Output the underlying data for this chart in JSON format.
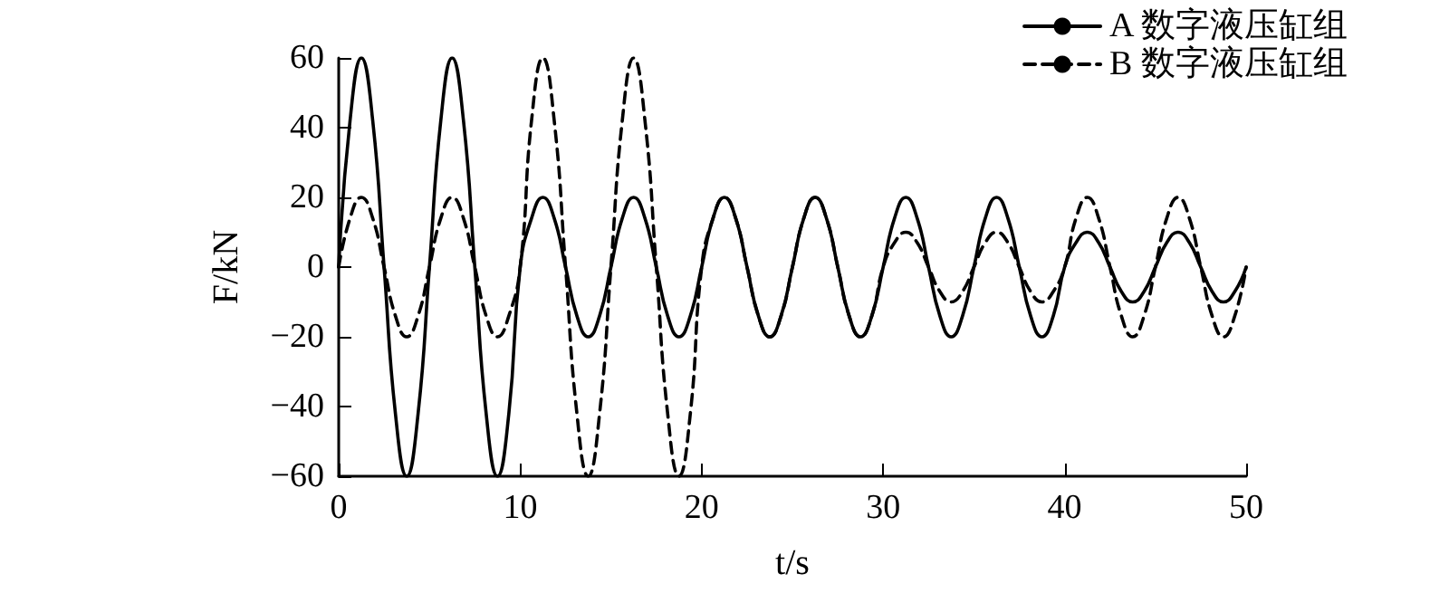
{
  "chart_data": {
    "type": "line",
    "xlabel": "t/s",
    "ylabel": "F/kN",
    "x": [
      0,
      0.625,
      1.25,
      1.875,
      2.5,
      3.125,
      3.75,
      4.375,
      5,
      5.625,
      6.25,
      6.875,
      7.5,
      8.125,
      8.75,
      9.375,
      10,
      10.625,
      11.25,
      11.875,
      12.5,
      13.125,
      13.75,
      14.375,
      15,
      15.625,
      16.25,
      16.875,
      17.5,
      18.125,
      18.75,
      19.375,
      20,
      20.625,
      21.25,
      21.875,
      22.5,
      23.125,
      23.75,
      24.375,
      25,
      25.625,
      26.25,
      26.875,
      27.5,
      28.125,
      28.75,
      29.375,
      30,
      30.625,
      31.25,
      31.875,
      32.5,
      33.125,
      33.75,
      34.375,
      35,
      35.625,
      36.25,
      36.875,
      37.5,
      38.125,
      38.75,
      39.375,
      40,
      40.625,
      41.25,
      41.875,
      42.5,
      43.125,
      43.75,
      44.375,
      45,
      45.625,
      46.25,
      46.875,
      47.5,
      48.125,
      48.75,
      49.375,
      50
    ],
    "series": [
      {
        "name": "A 数字液压缸组",
        "color": "#000000",
        "line_style": "solid",
        "values": [
          0,
          42,
          60,
          42,
          0,
          -42,
          -60,
          -42,
          0,
          42,
          60,
          42,
          0,
          -42,
          -60,
          -42,
          0,
          14,
          20,
          14,
          0,
          -14,
          -20,
          -14,
          0,
          14,
          20,
          14,
          0,
          -14,
          -20,
          -14,
          0,
          14,
          20,
          14,
          0,
          -14,
          -20,
          -14,
          0,
          14,
          20,
          14,
          0,
          -14,
          -20,
          -14,
          0,
          14,
          20,
          14,
          0,
          -14,
          -20,
          -14,
          0,
          14,
          20,
          14,
          0,
          -14,
          -20,
          -14,
          0,
          7,
          10,
          7,
          0,
          -7,
          -10,
          -7,
          0,
          7,
          10,
          7,
          0,
          -7,
          -10,
          -7,
          0
        ]
      },
      {
        "name": "B 数字液压缸组",
        "color": "#000000",
        "line_style": "dashed",
        "values": [
          0,
          14,
          20,
          14,
          0,
          -14,
          -20,
          -14,
          0,
          14,
          20,
          14,
          0,
          -14,
          -20,
          -14,
          0,
          42,
          60,
          42,
          0,
          -42,
          -60,
          -42,
          0,
          42,
          60,
          42,
          0,
          -42,
          -60,
          -42,
          0,
          14,
          20,
          14,
          0,
          -14,
          -20,
          -14,
          0,
          14,
          20,
          14,
          0,
          -14,
          -20,
          -14,
          0,
          7,
          10,
          7,
          0,
          -7,
          -10,
          -7,
          0,
          7,
          10,
          7,
          0,
          -7,
          -10,
          -7,
          0,
          14,
          20,
          14,
          0,
          -14,
          -20,
          -14,
          0,
          14,
          20,
          14,
          0,
          -14,
          -20,
          -14,
          0
        ]
      }
    ],
    "xlim": [
      0,
      50
    ],
    "xticks": [
      0,
      10,
      20,
      30,
      40,
      50
    ],
    "ylim": [
      -60,
      60
    ],
    "yticks": [
      -60,
      -40,
      -20,
      0,
      20,
      40,
      60
    ],
    "grid": false,
    "legend": "top right",
    "marker": "none"
  }
}
